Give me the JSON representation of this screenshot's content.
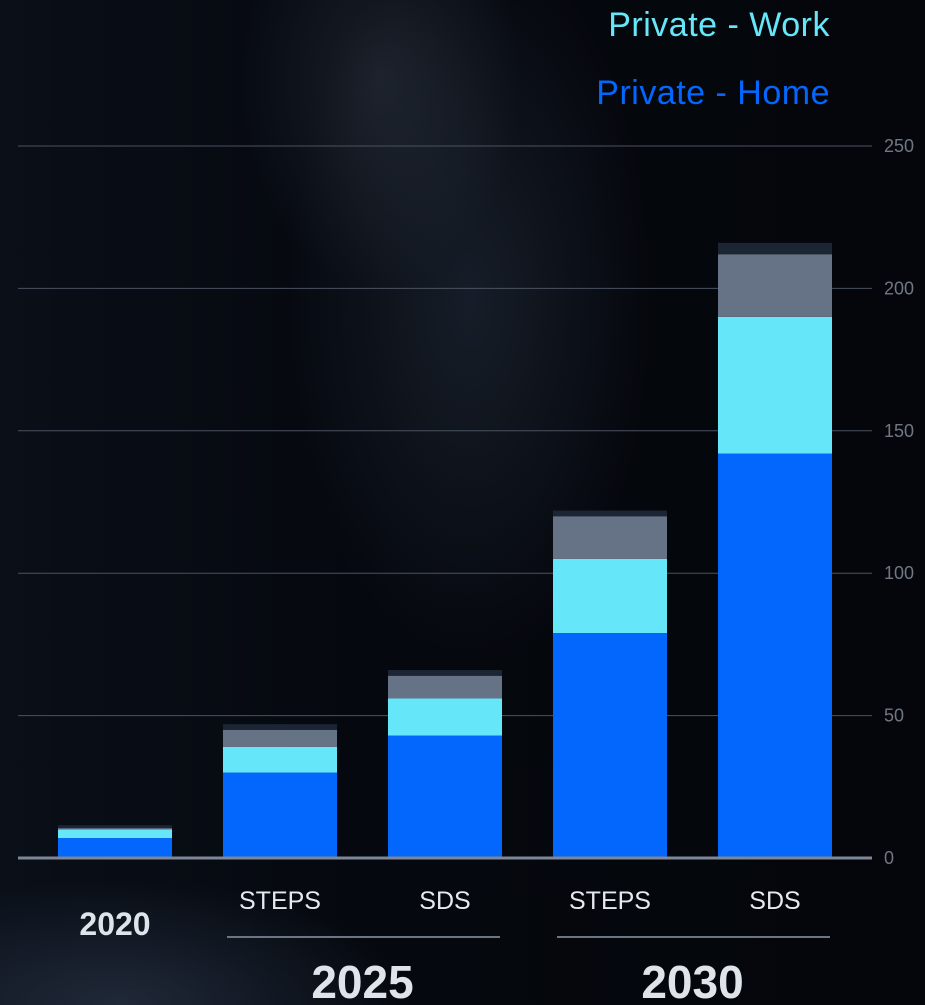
{
  "chart_data": {
    "type": "bar",
    "stacked": true,
    "categories": [
      "2020",
      "STEPS",
      "SDS",
      "STEPS",
      "SDS"
    ],
    "groups": [
      {
        "label": "2020",
        "categories": [
          0
        ]
      },
      {
        "label": "2025",
        "categories": [
          1,
          2
        ]
      },
      {
        "label": "2030",
        "categories": [
          3,
          4
        ]
      }
    ],
    "series": [
      {
        "name": "Private - Home",
        "color": "#0366fd",
        "values": [
          7,
          30,
          43,
          79,
          142
        ]
      },
      {
        "name": "Private - Work",
        "color": "#66e7f9",
        "values": [
          3,
          9,
          13,
          26,
          48
        ]
      },
      {
        "color": "#667387",
        "values": [
          0.5,
          6,
          8,
          15,
          22
        ]
      },
      {
        "color": "#1c2534",
        "values": [
          1,
          2,
          2,
          2,
          4
        ]
      }
    ],
    "legend": {
      "placement": "top-right",
      "entries": [
        "Private - Work",
        "Private - Home"
      ]
    },
    "ylim": [
      0,
      250
    ],
    "yticks": [
      0,
      50,
      100,
      150,
      200,
      250
    ],
    "yaxis_side": "right",
    "grid": true,
    "title": "",
    "xlabel": "",
    "ylabel": ""
  }
}
